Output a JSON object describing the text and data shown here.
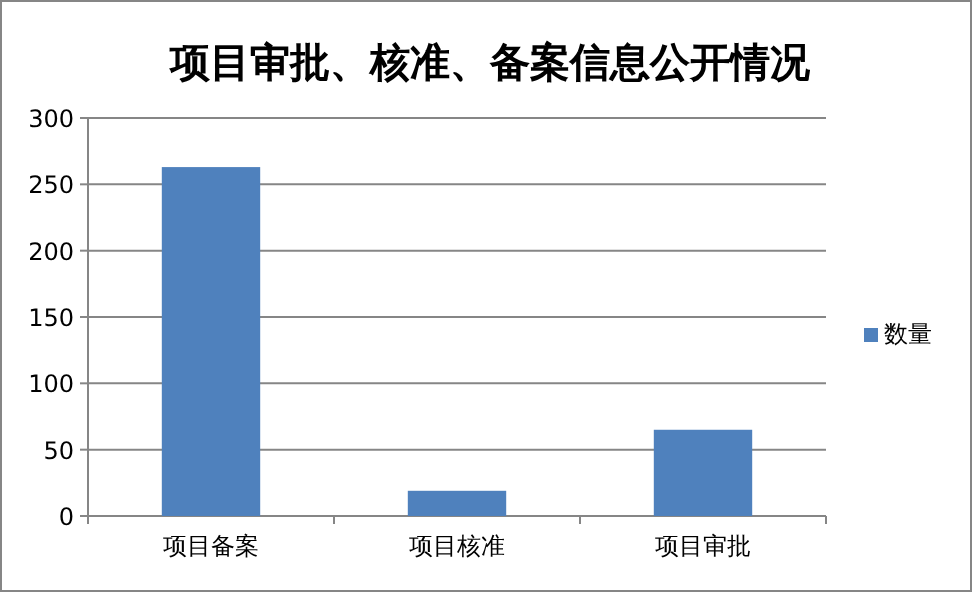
{
  "chart_data": {
    "type": "bar",
    "title": "项目审批、核准、备案信息公开情况",
    "categories": [
      "项目备案",
      "项目核准",
      "项目审批"
    ],
    "series": [
      {
        "name": "数量",
        "color": "#4f81bd",
        "values": [
          263,
          19,
          65
        ]
      }
    ],
    "ylim": [
      0,
      300
    ],
    "yticks": [
      0,
      50,
      100,
      150,
      200,
      250,
      300
    ],
    "grid": "y",
    "legend": "right"
  }
}
